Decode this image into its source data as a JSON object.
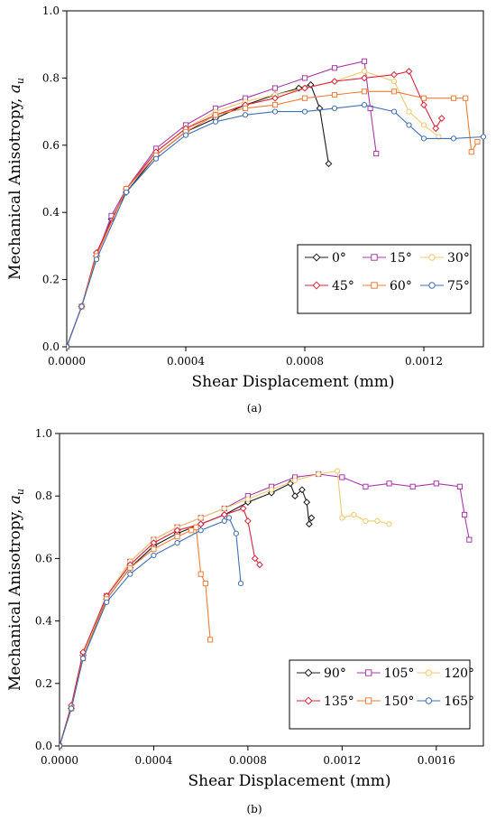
{
  "chart_data": [
    {
      "type": "line",
      "caption": "(a)",
      "xlabel": "Shear Displacement (mm)",
      "ylabel": "Mechanical Anisotropy, a_u",
      "ylabel_main": "Mechanical Anisotropy, ",
      "ylabel_sym": "a",
      "ylabel_sub": "u",
      "xlim": [
        0,
        0.0014
      ],
      "ylim": [
        0,
        1.0
      ],
      "xticks": [
        "0.0000",
        "0.0004",
        "0.0008",
        "0.0012"
      ],
      "xtick_values": [
        0,
        0.0004,
        0.0008,
        0.0012
      ],
      "yticks": [
        "0.0",
        "0.2",
        "0.4",
        "0.6",
        "0.8",
        "1.0"
      ],
      "ytick_values": [
        0,
        0.2,
        0.4,
        0.6,
        0.8,
        1.0
      ],
      "grid": false,
      "legend": "bottom-right",
      "series": [
        {
          "name": "0°",
          "color": "#1a1a1a",
          "marker": "diamond",
          "x": [
            0,
            5e-05,
            0.0001,
            0.00015,
            0.0002,
            0.0003,
            0.0004,
            0.0005,
            0.0006,
            0.0007,
            0.00078,
            0.00082,
            0.00085,
            0.00088
          ],
          "y": [
            0,
            0.12,
            0.27,
            0.38,
            0.46,
            0.57,
            0.64,
            0.68,
            0.72,
            0.75,
            0.77,
            0.78,
            0.71,
            0.545
          ]
        },
        {
          "name": "15°",
          "color": "#a83aa8",
          "marker": "square",
          "x": [
            0,
            5e-05,
            0.0001,
            0.00015,
            0.0002,
            0.0003,
            0.0004,
            0.0005,
            0.0006,
            0.0007,
            0.0008,
            0.0009,
            0.001,
            0.00102,
            0.00104
          ],
          "y": [
            0,
            0.12,
            0.27,
            0.39,
            0.47,
            0.59,
            0.66,
            0.71,
            0.74,
            0.77,
            0.8,
            0.83,
            0.85,
            0.71,
            0.575
          ]
        },
        {
          "name": "30°",
          "color": "#f2c96d",
          "marker": "circle",
          "x": [
            0,
            5e-05,
            0.0001,
            0.0002,
            0.0003,
            0.0004,
            0.0005,
            0.0006,
            0.0007,
            0.0008,
            0.0009,
            0.001,
            0.0011,
            0.00115,
            0.0012,
            0.00125
          ],
          "y": [
            0,
            0.12,
            0.27,
            0.47,
            0.58,
            0.65,
            0.7,
            0.73,
            0.75,
            0.77,
            0.79,
            0.82,
            0.79,
            0.7,
            0.66,
            0.625
          ]
        },
        {
          "name": "45°",
          "color": "#d7263d",
          "marker": "diamond",
          "x": [
            0,
            5e-05,
            0.0001,
            0.0002,
            0.0003,
            0.0004,
            0.0005,
            0.0006,
            0.0007,
            0.0008,
            0.0009,
            0.001,
            0.0011,
            0.00115,
            0.0012,
            0.00124,
            0.00126
          ],
          "y": [
            0,
            0.12,
            0.28,
            0.47,
            0.58,
            0.65,
            0.69,
            0.72,
            0.74,
            0.77,
            0.79,
            0.8,
            0.81,
            0.82,
            0.72,
            0.65,
            0.68
          ]
        },
        {
          "name": "60°",
          "color": "#f07d3a",
          "marker": "square",
          "x": [
            0,
            5e-05,
            0.0001,
            0.0002,
            0.0003,
            0.0004,
            0.0005,
            0.0006,
            0.0007,
            0.0008,
            0.0009,
            0.001,
            0.0011,
            0.0012,
            0.0013,
            0.00134,
            0.00136,
            0.00138
          ],
          "y": [
            0,
            0.12,
            0.27,
            0.47,
            0.57,
            0.64,
            0.69,
            0.71,
            0.72,
            0.74,
            0.75,
            0.76,
            0.76,
            0.74,
            0.74,
            0.74,
            0.58,
            0.61
          ]
        },
        {
          "name": "75°",
          "color": "#3f6fb6",
          "marker": "circle",
          "x": [
            0,
            5e-05,
            0.0001,
            0.0002,
            0.0003,
            0.0004,
            0.0005,
            0.0006,
            0.0007,
            0.0008,
            0.0009,
            0.001,
            0.0011,
            0.00115,
            0.0012,
            0.0013,
            0.0014
          ],
          "y": [
            0,
            0.12,
            0.26,
            0.46,
            0.56,
            0.63,
            0.67,
            0.69,
            0.7,
            0.7,
            0.71,
            0.72,
            0.7,
            0.66,
            0.62,
            0.62,
            0.625
          ]
        }
      ]
    },
    {
      "type": "line",
      "caption": "(b)",
      "xlabel": "Shear Displacement (mm)",
      "ylabel": "Mechanical Anisotropy, a_u",
      "ylabel_main": "Mechanical Anisotropy, ",
      "ylabel_sym": "a",
      "ylabel_sub": "u",
      "xlim": [
        0,
        0.0018
      ],
      "ylim": [
        0,
        1.0
      ],
      "xticks": [
        "0.0000",
        "0.0004",
        "0.0008",
        "0.0012",
        "0.0016"
      ],
      "xtick_values": [
        0,
        0.0004,
        0.0008,
        0.0012,
        0.0016
      ],
      "yticks": [
        "0.0",
        "0.2",
        "0.4",
        "0.6",
        "0.8",
        "1.0"
      ],
      "ytick_values": [
        0,
        0.2,
        0.4,
        0.6,
        0.8,
        1.0
      ],
      "grid": false,
      "legend": "bottom-right",
      "series": [
        {
          "name": "90°",
          "color": "#1a1a1a",
          "marker": "diamond",
          "x": [
            0,
            5e-05,
            0.0001,
            0.0002,
            0.0003,
            0.0004,
            0.0005,
            0.0006,
            0.0007,
            0.0008,
            0.0009,
            0.00098,
            0.001,
            0.00103,
            0.00105,
            0.00106,
            0.00107
          ],
          "y": [
            0,
            0.12,
            0.29,
            0.47,
            0.57,
            0.64,
            0.68,
            0.71,
            0.74,
            0.78,
            0.81,
            0.84,
            0.8,
            0.82,
            0.78,
            0.71,
            0.73
          ]
        },
        {
          "name": "105°",
          "color": "#a83aa8",
          "marker": "square",
          "x": [
            0,
            5e-05,
            0.0001,
            0.0002,
            0.0003,
            0.0004,
            0.0005,
            0.0006,
            0.0007,
            0.0008,
            0.0009,
            0.001,
            0.0011,
            0.0012,
            0.0013,
            0.0014,
            0.0015,
            0.0016,
            0.0017,
            0.00172,
            0.00174
          ],
          "y": [
            0,
            0.12,
            0.29,
            0.48,
            0.59,
            0.66,
            0.7,
            0.73,
            0.76,
            0.8,
            0.83,
            0.86,
            0.87,
            0.86,
            0.83,
            0.84,
            0.83,
            0.84,
            0.83,
            0.74,
            0.66
          ]
        },
        {
          "name": "120°",
          "color": "#f2c96d",
          "marker": "circle",
          "x": [
            0,
            5e-05,
            0.0001,
            0.0002,
            0.0003,
            0.0004,
            0.0005,
            0.0006,
            0.0007,
            0.0008,
            0.0009,
            0.001,
            0.0011,
            0.00118,
            0.0012,
            0.00125,
            0.0013,
            0.00135,
            0.0014
          ],
          "y": [
            0,
            0.12,
            0.29,
            0.48,
            0.59,
            0.66,
            0.7,
            0.73,
            0.76,
            0.79,
            0.82,
            0.85,
            0.87,
            0.88,
            0.73,
            0.74,
            0.72,
            0.72,
            0.71
          ]
        },
        {
          "name": "135°",
          "color": "#d7263d",
          "marker": "diamond",
          "x": [
            0,
            5e-05,
            0.0001,
            0.0002,
            0.0003,
            0.0004,
            0.0005,
            0.0006,
            0.0007,
            0.00078,
            0.0008,
            0.00083,
            0.00085
          ],
          "y": [
            0,
            0.13,
            0.3,
            0.48,
            0.58,
            0.65,
            0.69,
            0.71,
            0.74,
            0.76,
            0.72,
            0.6,
            0.58
          ]
        },
        {
          "name": "150°",
          "color": "#f07d3a",
          "marker": "square",
          "x": [
            0,
            5e-05,
            0.0001,
            0.0002,
            0.0003,
            0.0004,
            0.0005,
            0.00056,
            0.00058,
            0.0006,
            0.00062,
            0.00064
          ],
          "y": [
            0,
            0.12,
            0.28,
            0.47,
            0.57,
            0.63,
            0.67,
            0.69,
            0.7,
            0.55,
            0.52,
            0.34
          ]
        },
        {
          "name": "165°",
          "color": "#3f6fb6",
          "marker": "circle",
          "x": [
            0,
            5e-05,
            0.0001,
            0.0002,
            0.0003,
            0.0004,
            0.0005,
            0.0006,
            0.0007,
            0.00072,
            0.00075,
            0.00077
          ],
          "y": [
            0,
            0.12,
            0.28,
            0.46,
            0.55,
            0.61,
            0.65,
            0.69,
            0.72,
            0.73,
            0.68,
            0.52
          ]
        }
      ]
    }
  ]
}
